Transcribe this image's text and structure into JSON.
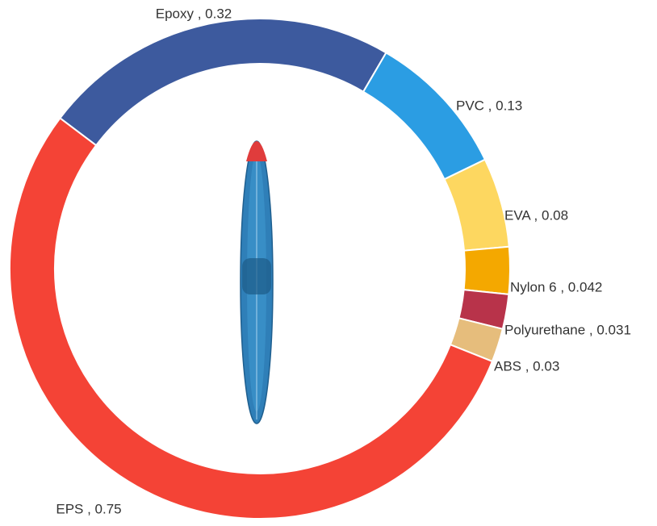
{
  "chart_data": {
    "type": "donut",
    "values": [
      0.32,
      0.13,
      0.08,
      0.042,
      0.031,
      0.03,
      0.75
    ],
    "value_labels": [
      "Epoxy , 0.32",
      "PVC , 0.13",
      "EVA , 0.08",
      "Nylon 6 , 0.042",
      "Polyurethane , 0.031",
      "ABS , 0.03",
      "EPS , 0.75"
    ],
    "colors": [
      "#3d5a9e",
      "#2b9de3",
      "#fdd760",
      "#f4a800",
      "#b8334a",
      "#e6bd7c",
      "#f44336"
    ]
  }
}
